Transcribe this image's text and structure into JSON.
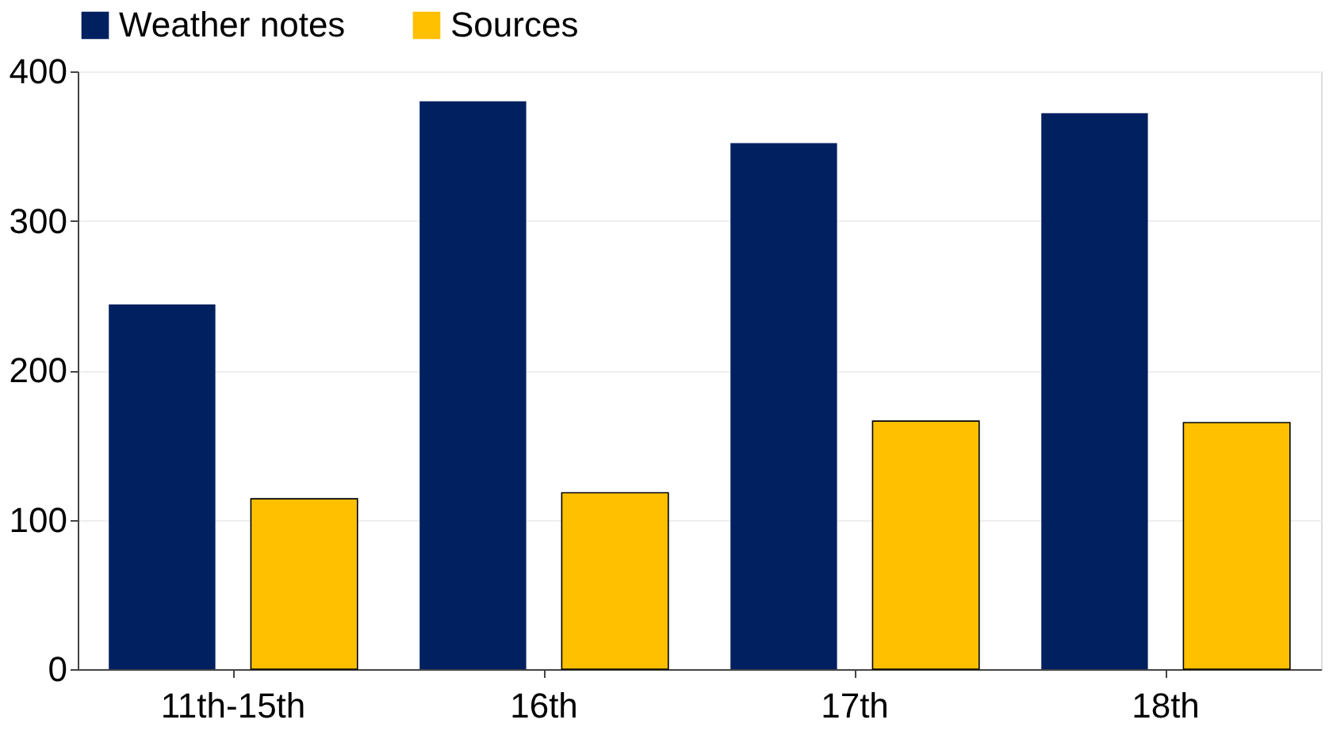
{
  "chart_data": {
    "type": "bar",
    "categories": [
      "11th-15th",
      "16th",
      "17th",
      "18th"
    ],
    "series": [
      {
        "name": "Weather notes",
        "color": "#002060",
        "values": [
          244,
          380,
          352,
          372
        ]
      },
      {
        "name": "Sources",
        "color": "#ffc000",
        "values": [
          114,
          118,
          166,
          165
        ]
      }
    ],
    "ylim": [
      0,
      400
    ],
    "yticks": [
      0,
      100,
      200,
      300,
      400
    ],
    "grid": "y",
    "legend": "top"
  }
}
